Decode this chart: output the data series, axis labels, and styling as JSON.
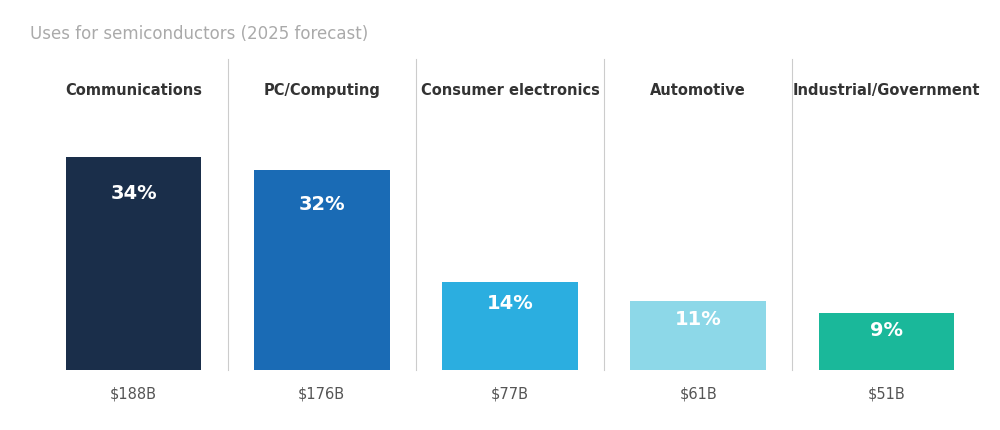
{
  "title": "Uses for semiconductors (2025 forecast)",
  "categories": [
    "Communications",
    "PC/Computing",
    "Consumer electronics",
    "Automotive",
    "Industrial/Government"
  ],
  "values": [
    34,
    32,
    14,
    11,
    9
  ],
  "dollar_labels": [
    "$188B",
    "$176B",
    "$77B",
    "$61B",
    "$51B"
  ],
  "pct_labels": [
    "34%",
    "32%",
    "14%",
    "11%",
    "9%"
  ],
  "bar_colors": [
    "#1a2e4a",
    "#1a6bb5",
    "#2baee0",
    "#8dd8e8",
    "#1ab89a"
  ],
  "background_color": "#ffffff",
  "title_color": "#aaaaaa",
  "category_color": "#333333",
  "dollar_color": "#555555",
  "pct_text_color": "#ffffff",
  "bar_width": 0.72,
  "figsize": [
    10.0,
    4.31
  ],
  "dpi": 100,
  "ylim_max": 40,
  "title_fontsize": 12,
  "category_fontsize": 10.5,
  "pct_fontsize": 14,
  "dollar_fontsize": 10.5,
  "divider_color": "#cccccc"
}
